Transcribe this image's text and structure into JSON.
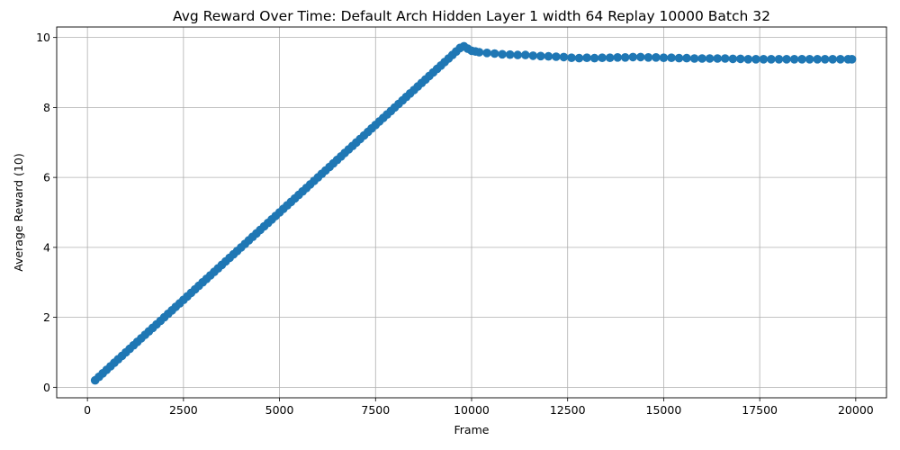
{
  "chart_data": {
    "type": "line",
    "title": "Avg Reward Over Time: Default Arch Hidden Layer 1 width 64 Replay 10000 Batch 32",
    "xlabel": "Frame",
    "ylabel": "Average Reward (10)",
    "xlim": [
      -800,
      20800
    ],
    "ylim": [
      -0.3,
      10.3
    ],
    "xticks": [
      0,
      2500,
      5000,
      7500,
      10000,
      12500,
      15000,
      17500,
      20000
    ],
    "yticks": [
      0,
      2,
      4,
      6,
      8,
      10
    ],
    "grid": true,
    "marker": "circle",
    "color": "#1f77b4",
    "series": [
      {
        "x": [
          200,
          300,
          400,
          500,
          600,
          700,
          800,
          900,
          1000,
          1100,
          1200,
          1300,
          1400,
          1500,
          1600,
          1700,
          1800,
          1900,
          2000,
          2100,
          2200,
          2300,
          2400,
          2500,
          2600,
          2700,
          2800,
          2900,
          3000,
          3100,
          3200,
          3300,
          3400,
          3500,
          3600,
          3700,
          3800,
          3900,
          4000,
          4100,
          4200,
          4300,
          4400,
          4500,
          4600,
          4700,
          4800,
          4900,
          5000,
          5100,
          5200,
          5300,
          5400,
          5500,
          5600,
          5700,
          5800,
          5900,
          6000,
          6100,
          6200,
          6300,
          6400,
          6500,
          6600,
          6700,
          6800,
          6900,
          7000,
          7100,
          7200,
          7300,
          7400,
          7500,
          7600,
          7700,
          7800,
          7900,
          8000,
          8100,
          8200,
          8300,
          8400,
          8500,
          8600,
          8700,
          8800,
          8900,
          9000,
          9100,
          9200,
          9300,
          9400,
          9500,
          9600,
          9700,
          9800,
          9900,
          10000,
          10100,
          10200,
          10400,
          10600,
          10800,
          11000,
          11200,
          11400,
          11600,
          11800,
          12000,
          12200,
          12400,
          12600,
          12800,
          13000,
          13200,
          13400,
          13600,
          13800,
          14000,
          14200,
          14400,
          14600,
          14800,
          15000,
          15200,
          15400,
          15600,
          15800,
          16000,
          16200,
          16400,
          16600,
          16800,
          17000,
          17200,
          17400,
          17600,
          17800,
          18000,
          18200,
          18400,
          18600,
          18800,
          19000,
          19200,
          19400,
          19600,
          19800,
          19900
        ],
        "values": [
          0.2,
          0.3,
          0.4,
          0.5,
          0.6,
          0.7,
          0.8,
          0.9,
          1.0,
          1.1,
          1.2,
          1.3,
          1.4,
          1.5,
          1.6,
          1.7,
          1.8,
          1.9,
          2.0,
          2.1,
          2.2,
          2.3,
          2.4,
          2.5,
          2.6,
          2.7,
          2.8,
          2.9,
          3.0,
          3.1,
          3.2,
          3.3,
          3.4,
          3.5,
          3.6,
          3.7,
          3.8,
          3.9,
          4.0,
          4.1,
          4.2,
          4.3,
          4.4,
          4.5,
          4.6,
          4.7,
          4.8,
          4.9,
          5.0,
          5.1,
          5.2,
          5.3,
          5.4,
          5.5,
          5.6,
          5.7,
          5.8,
          5.9,
          6.0,
          6.1,
          6.2,
          6.3,
          6.4,
          6.5,
          6.6,
          6.7,
          6.8,
          6.9,
          7.0,
          7.1,
          7.2,
          7.3,
          7.4,
          7.5,
          7.6,
          7.7,
          7.8,
          7.9,
          8.0,
          8.1,
          8.2,
          8.3,
          8.4,
          8.5,
          8.6,
          8.7,
          8.8,
          8.9,
          9.0,
          9.1,
          9.2,
          9.3,
          9.4,
          9.5,
          9.6,
          9.7,
          9.75,
          9.68,
          9.62,
          9.6,
          9.58,
          9.56,
          9.54,
          9.52,
          9.51,
          9.5,
          9.5,
          9.48,
          9.47,
          9.46,
          9.45,
          9.44,
          9.42,
          9.41,
          9.42,
          9.41,
          9.42,
          9.42,
          9.43,
          9.43,
          9.44,
          9.44,
          9.43,
          9.43,
          9.42,
          9.42,
          9.41,
          9.41,
          9.4,
          9.4,
          9.4,
          9.4,
          9.4,
          9.39,
          9.39,
          9.38,
          9.38,
          9.38,
          9.38,
          9.38,
          9.38,
          9.38,
          9.38,
          9.38,
          9.38,
          9.38,
          9.38,
          9.38,
          9.38,
          9.38
        ]
      }
    ]
  }
}
